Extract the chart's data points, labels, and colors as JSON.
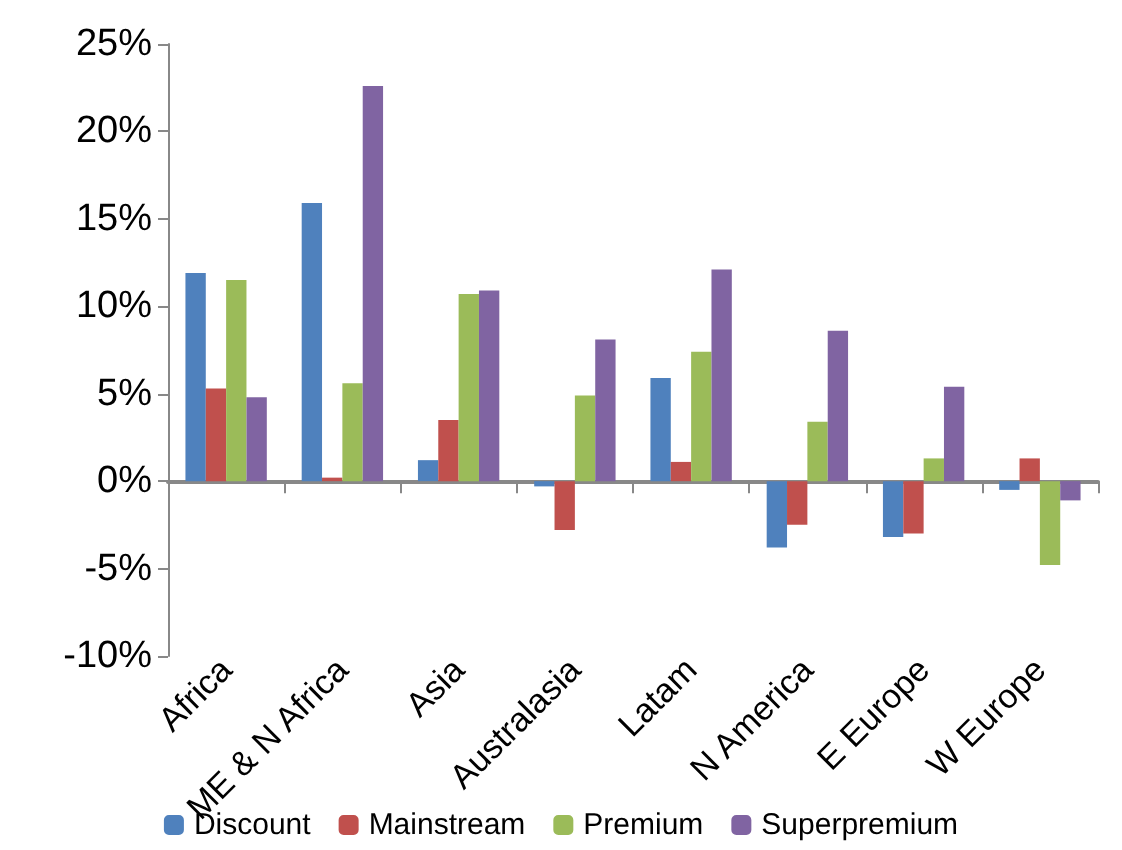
{
  "chart_data": {
    "type": "bar",
    "categories": [
      "Africa",
      "ME & N Africa",
      "Asia",
      "Australasia",
      "Latam",
      "N America",
      "E Europe",
      "W Europe"
    ],
    "series": [
      {
        "name": "Discount",
        "color": "#4f81bd",
        "values": [
          11.9,
          15.9,
          1.2,
          -0.3,
          5.9,
          -3.8,
          -3.2,
          -0.5
        ]
      },
      {
        "name": "Mainstream",
        "color": "#c0504d",
        "values": [
          5.3,
          0.2,
          3.5,
          -2.8,
          1.1,
          -2.5,
          -3.0,
          1.3
        ]
      },
      {
        "name": "Premium",
        "color": "#9bbb59",
        "values": [
          11.5,
          5.6,
          10.7,
          4.9,
          7.4,
          3.4,
          1.3,
          -4.8
        ]
      },
      {
        "name": "Superpremium",
        "color": "#8064a2",
        "values": [
          4.8,
          22.6,
          10.9,
          8.1,
          12.1,
          8.6,
          5.4,
          -1.1
        ]
      }
    ],
    "ylim": [
      -10,
      25
    ],
    "yticks": [
      {
        "value": -10,
        "label": "-10%"
      },
      {
        "value": -5,
        "label": "-5%"
      },
      {
        "value": 0,
        "label": "0%"
      },
      {
        "value": 5,
        "label": "5%"
      },
      {
        "value": 10,
        "label": "10%"
      },
      {
        "value": 15,
        "label": "15%"
      },
      {
        "value": 20,
        "label": "20%"
      },
      {
        "value": 25,
        "label": "25%"
      }
    ],
    "legend": "bottom"
  }
}
